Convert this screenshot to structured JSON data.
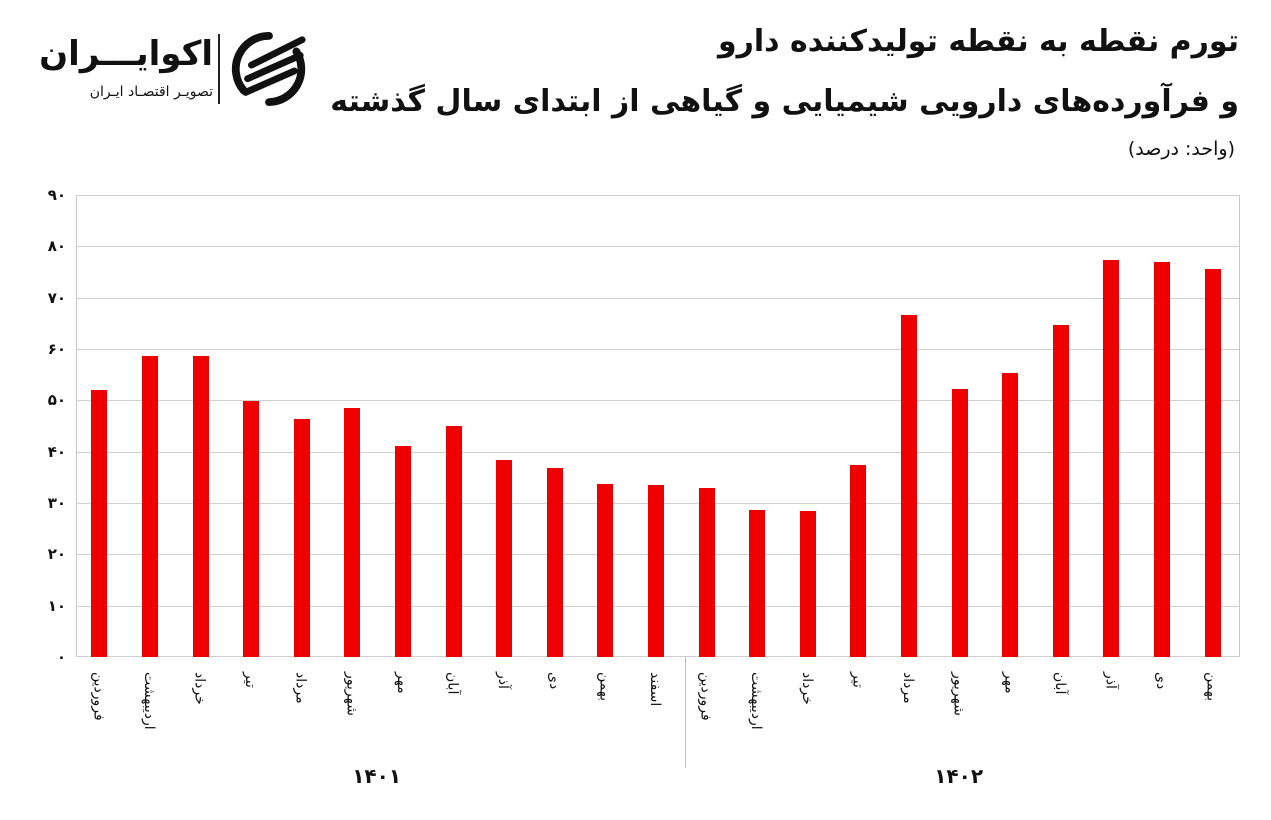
{
  "header": {
    "title_line1": "تورم نقطه به نقطه تولیدکننده دارو",
    "title_line2": "و فرآورده‌های دارویی شیمیایی و گیاهی از ابتدای سال گذشته",
    "unit": "(واحد: درصد)"
  },
  "logo": {
    "name": "اکوایـــران",
    "tagline": "تصویـر اقتصـاد ایـران",
    "icon": "ecoiran-logo-icon"
  },
  "colors": {
    "bar": "#ee0000",
    "grid": "#cfcfcf",
    "text": "#111111"
  },
  "y_ticks": [
    "۰",
    "۱۰",
    "۲۰",
    "۳۰",
    "۴۰",
    "۵۰",
    "۶۰",
    "۷۰",
    "۸۰",
    "۹۰"
  ],
  "years": [
    {
      "label": "۱۴۰۱"
    },
    {
      "label": "۱۴۰۲"
    }
  ],
  "chart_data": {
    "type": "bar",
    "title": "تورم نقطه به نقطه تولیدکننده دارو و فرآورده‌های دارویی شیمیایی و گیاهی از ابتدای سال گذشته",
    "subtitle": "(واحد: درصد)",
    "xlabel": "",
    "ylabel": "درصد",
    "ylim": [
      0,
      90
    ],
    "y_tick_values": [
      0,
      10,
      20,
      30,
      40,
      50,
      60,
      70,
      80,
      90
    ],
    "grid": true,
    "legend": null,
    "groups": [
      {
        "name": "۱۴۰۱",
        "start": 0,
        "count": 12
      },
      {
        "name": "۱۴۰۲",
        "start": 12,
        "count": 11
      }
    ],
    "categories": [
      "فروردین",
      "اردیبهشت",
      "خرداد",
      "تیر",
      "مرداد",
      "شهریور",
      "مهر",
      "آبان",
      "آذر",
      "دی",
      "بهمن",
      "اسفند",
      "فروردین",
      "اردیبهشت",
      "خرداد",
      "تیر",
      "مرداد",
      "شهریور",
      "مهر",
      "آبان",
      "آذر",
      "دی",
      "بهمن"
    ],
    "series": [
      {
        "name": "تورم نقطه به نقطه",
        "values": [
          52.0,
          58.6,
          58.7,
          49.8,
          46.4,
          48.6,
          41.1,
          45.1,
          38.3,
          36.9,
          33.7,
          33.6,
          32.9,
          28.6,
          28.5,
          37.5,
          66.7,
          52.3,
          55.3,
          64.7,
          77.4,
          76.9,
          75.6
        ]
      }
    ]
  }
}
